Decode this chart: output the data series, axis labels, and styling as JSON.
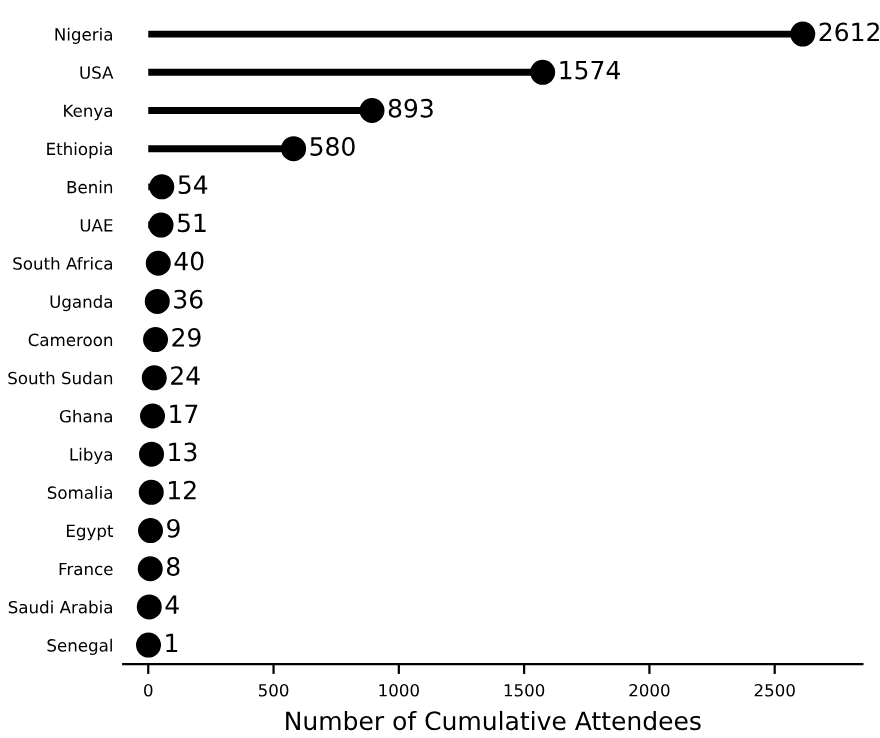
{
  "chart_data": {
    "type": "lollipop",
    "orientation": "horizontal",
    "xlabel": "Number of Cumulative Attendees",
    "categories": [
      "Nigeria",
      "USA",
      "Kenya",
      "Ethiopia",
      "Benin",
      "UAE",
      "South Africa",
      "Uganda",
      "Cameroon",
      "South Sudan",
      "Ghana",
      "Libya",
      "Somalia",
      "Egypt",
      "France",
      "Saudi Arabia",
      "Senegal"
    ],
    "values": [
      2612,
      1574,
      893,
      580,
      54,
      51,
      40,
      36,
      29,
      24,
      17,
      13,
      12,
      9,
      8,
      4,
      1
    ],
    "color": "#000000",
    "marker": "circle",
    "data_labels": true,
    "grid": false,
    "xlim": [
      -100,
      2850
    ],
    "xticks": [
      0,
      500,
      1000,
      1500,
      2000,
      2500
    ]
  }
}
